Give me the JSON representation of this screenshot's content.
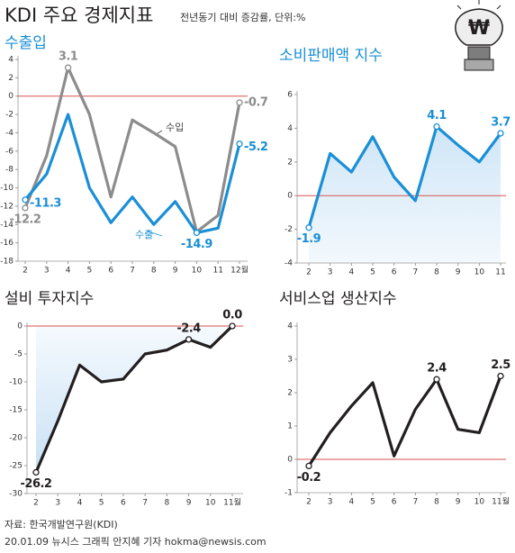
{
  "header": {
    "title": "KDI 주요 경제지표",
    "subtitle": "전년동기 대비 증감률, 단위:%",
    "icon_symbol": "₩"
  },
  "footer": {
    "source": "자료: 한국개발연구원(KDI)",
    "credit": "20.01.09 뉴시스 그래픽 안지혜 기자 hokma@newsis.com"
  },
  "chart_data": [
    {
      "type": "line",
      "title": "수출입",
      "title_color": "#1a8fd6",
      "categories": [
        "2",
        "3",
        "4",
        "5",
        "6",
        "7",
        "8",
        "9",
        "10",
        "11",
        "12월"
      ],
      "series": [
        {
          "name": "수입",
          "color": "#8c8c8c",
          "values": [
            -12.2,
            -6.5,
            3.1,
            -2,
            -11,
            -2.6,
            -4,
            -5.5,
            -14.8,
            -13,
            -0.7
          ],
          "value_labels": [
            "-12.2",
            null,
            "3.1",
            null,
            null,
            null,
            null,
            null,
            null,
            null,
            "-0.7"
          ]
        },
        {
          "name": "수출",
          "color": "#1a8fd6",
          "values": [
            -11.3,
            -8.5,
            -2,
            -10,
            -13.8,
            -11,
            -14,
            -11.5,
            -14.9,
            -14.4,
            -5.2
          ],
          "value_labels": [
            "-11.3",
            null,
            null,
            null,
            null,
            null,
            null,
            null,
            "-14.9",
            null,
            "-5.2"
          ]
        }
      ],
      "ylim": [
        -18,
        4
      ],
      "yticks": [
        4,
        2,
        0,
        -2,
        -4,
        -6,
        -8,
        -10,
        -12,
        -14,
        -16,
        -18
      ]
    },
    {
      "type": "line",
      "title": "소비판매액 지수",
      "title_color": "#1a8fd6",
      "categories": [
        "2",
        "3",
        "4",
        "5",
        "6",
        "7",
        "8",
        "9",
        "10",
        "11"
      ],
      "values": [
        -1.9,
        2.5,
        1.4,
        3.5,
        1.1,
        -0.3,
        4.1,
        3.0,
        2.0,
        3.7
      ],
      "color": "#1a8fd6",
      "value_labels": [
        "-1.9",
        null,
        null,
        null,
        null,
        null,
        "4.1",
        null,
        null,
        "3.7"
      ],
      "area": "below",
      "area_color": "#d6e9f8",
      "ylim": [
        -4,
        6
      ],
      "yticks": [
        6,
        4,
        2,
        0,
        -2,
        -4
      ]
    },
    {
      "type": "line",
      "title": "설비 투자지수",
      "title_color": "#231f20",
      "categories": [
        "2",
        "3",
        "4",
        "5",
        "6",
        "7",
        "8",
        "9",
        "10",
        "11월"
      ],
      "values": [
        -26.2,
        -17,
        -7,
        -10,
        -9.5,
        -5,
        -4.3,
        -2.4,
        -3.8,
        0.0
      ],
      "color": "#231f20",
      "value_labels": [
        "-26.2",
        null,
        null,
        null,
        null,
        null,
        null,
        "-2.4",
        null,
        "0.0"
      ],
      "area": "above",
      "area_color": "#d6e9f8",
      "ylim": [
        -30,
        0
      ],
      "yticks": [
        0,
        -5,
        -10,
        -15,
        -20,
        -25,
        -30
      ]
    },
    {
      "type": "line",
      "title": "서비스업 생산지수",
      "title_color": "#231f20",
      "categories": [
        "2",
        "3",
        "4",
        "5",
        "6",
        "7",
        "8",
        "9",
        "10",
        "11월"
      ],
      "values": [
        -0.2,
        0.8,
        1.6,
        2.3,
        0.1,
        1.5,
        2.4,
        0.9,
        0.8,
        2.5
      ],
      "color": "#231f20",
      "value_labels": [
        "-0.2",
        null,
        null,
        null,
        null,
        null,
        "2.4",
        null,
        null,
        "2.5"
      ],
      "ylim": [
        -1,
        4
      ],
      "yticks": [
        4,
        3,
        2,
        1,
        0,
        -1
      ]
    }
  ]
}
